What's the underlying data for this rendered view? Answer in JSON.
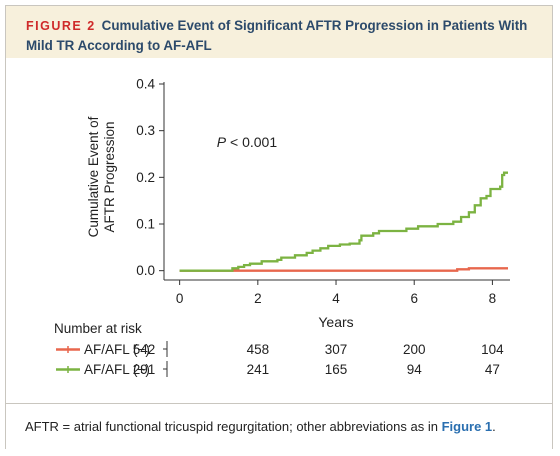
{
  "figure": {
    "label": "FIGURE 2",
    "title": "Cumulative Event of Significant AFTR Progression in Patients With Mild TR According to AF-AFL"
  },
  "chart_data": {
    "type": "line",
    "title": "Cumulative Event of Significant AFTR Progression in Patients With Mild TR According to AF-AFL",
    "xlabel": "Years",
    "ylabel_line1": "Cumulative Event of",
    "ylabel_line2": "AFTR Progression",
    "xlim": [
      -0.4,
      8.45
    ],
    "ylim": [
      -0.02,
      0.4
    ],
    "x_ticks": [
      0,
      2,
      4,
      6,
      8
    ],
    "x_tick_labels": [
      "0",
      "2",
      "4",
      "6",
      "8"
    ],
    "y_ticks": [
      0.0,
      0.1,
      0.2,
      0.3,
      0.4
    ],
    "y_tick_labels": [
      "0.0",
      "0.1",
      "0.2",
      "0.3",
      "0.4"
    ],
    "annotation": "P < 0.001",
    "series": [
      {
        "name": "AF/AFL (−)",
        "color": "#e8674d",
        "step": [
          [
            0,
            0
          ],
          [
            7.1,
            0
          ],
          [
            7.1,
            0.003
          ],
          [
            7.4,
            0.005
          ],
          [
            8.4,
            0.005
          ]
        ]
      },
      {
        "name": "AF/AFL (+)",
        "color": "#7cb342",
        "step": [
          [
            0,
            0
          ],
          [
            1.2,
            0
          ],
          [
            1.35,
            0.005
          ],
          [
            1.5,
            0.008
          ],
          [
            1.65,
            0.012
          ],
          [
            1.8,
            0.015
          ],
          [
            2.1,
            0.02
          ],
          [
            2.5,
            0.023
          ],
          [
            2.6,
            0.028
          ],
          [
            2.95,
            0.033
          ],
          [
            3.25,
            0.038
          ],
          [
            3.4,
            0.043
          ],
          [
            3.6,
            0.048
          ],
          [
            3.8,
            0.053
          ],
          [
            4.1,
            0.056
          ],
          [
            4.35,
            0.058
          ],
          [
            4.6,
            0.065
          ],
          [
            4.65,
            0.075
          ],
          [
            4.95,
            0.08
          ],
          [
            5.1,
            0.085
          ],
          [
            5.8,
            0.09
          ],
          [
            6.1,
            0.095
          ],
          [
            6.6,
            0.1
          ],
          [
            7.0,
            0.105
          ],
          [
            7.2,
            0.115
          ],
          [
            7.4,
            0.125
          ],
          [
            7.55,
            0.14
          ],
          [
            7.7,
            0.155
          ],
          [
            7.85,
            0.16
          ],
          [
            7.95,
            0.175
          ],
          [
            8.2,
            0.18
          ],
          [
            8.25,
            0.205
          ],
          [
            8.3,
            0.21
          ],
          [
            8.4,
            0.21
          ]
        ]
      }
    ]
  },
  "risk_table": {
    "header": "Number at risk",
    "rows": [
      {
        "label": "AF/AFL (−)",
        "color": "#e8674d",
        "counts": [
          "542",
          "458",
          "307",
          "200",
          "104"
        ]
      },
      {
        "label": "AF/AFL (+)",
        "color": "#7cb342",
        "counts": [
          "291",
          "241",
          "165",
          "94",
          "47"
        ]
      }
    ]
  },
  "footnote": {
    "text": "AFTR = atrial functional tricuspid regurgitation; other abbreviations as in ",
    "link": "Figure 1",
    "end": "."
  }
}
